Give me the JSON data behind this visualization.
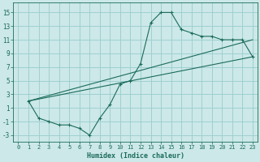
{
  "xlabel": "Humidex (Indice chaleur)",
  "xlim": [
    -0.5,
    23.5
  ],
  "ylim": [
    -4,
    16.5
  ],
  "xticks": [
    0,
    1,
    2,
    3,
    4,
    5,
    6,
    7,
    8,
    9,
    10,
    11,
    12,
    13,
    14,
    15,
    16,
    17,
    18,
    19,
    20,
    21,
    22,
    23
  ],
  "yticks": [
    -3,
    -1,
    1,
    3,
    5,
    7,
    9,
    11,
    13,
    15
  ],
  "bg_color": "#cce8e8",
  "grid_color": "#99cccc",
  "line_color": "#1a6b5a",
  "line1_x": [
    1,
    2,
    3,
    4,
    5,
    6,
    7,
    8,
    9,
    10,
    11,
    12,
    13,
    14,
    15,
    16,
    17,
    18,
    19,
    20,
    21,
    22,
    23
  ],
  "line1_y": [
    2.0,
    -0.5,
    -1.0,
    -1.5,
    -1.5,
    -2.0,
    -3.0,
    -0.5,
    1.5,
    4.5,
    5.0,
    7.5,
    13.5,
    15.0,
    15.0,
    12.5,
    12.0,
    11.5,
    11.5,
    11.0,
    11.0,
    11.0,
    8.5
  ],
  "line2_x": [
    1,
    23
  ],
  "line2_y": [
    2.0,
    8.5
  ],
  "line3_x": [
    1,
    23
  ],
  "line3_y": [
    2.0,
    11.0
  ],
  "marker": "+"
}
